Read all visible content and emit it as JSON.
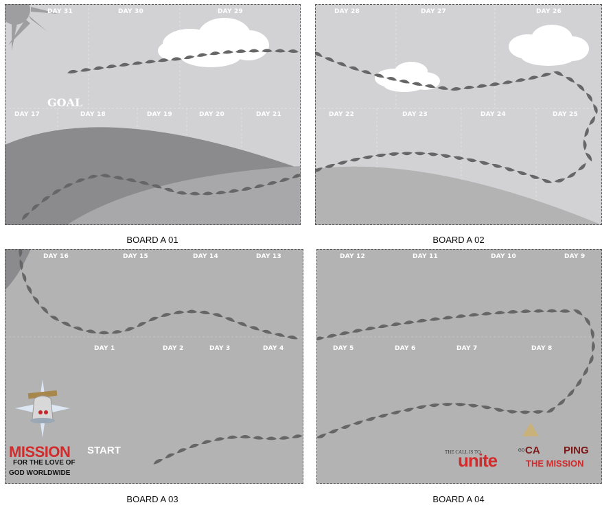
{
  "boards": {
    "a01": {
      "caption": "BOARD A 01",
      "goal": "GOAL",
      "days": {
        "d31": "DAY 31",
        "d30": "DAY 30",
        "d29": "DAY 29",
        "d17": "DAY 17",
        "d18": "DAY 18",
        "d19": "DAY 19",
        "d20": "DAY 20",
        "d21": "DAY 21"
      }
    },
    "a02": {
      "caption": "BOARD A 02",
      "days": {
        "d28": "DAY 28",
        "d27": "DAY 27",
        "d26": "DAY 26",
        "d22": "DAY 22",
        "d23": "DAY 23",
        "d24": "DAY 24",
        "d25": "DAY 25"
      }
    },
    "a03": {
      "caption": "BOARD A 03",
      "days": {
        "d16": "DAY 16",
        "d15": "DAY 15",
        "d14": "DAY 14",
        "d13": "DAY 13",
        "d1": "DAY 1",
        "d2": "DAY 2",
        "d3": "DAY 3",
        "d4": "DAY 4"
      },
      "logo": {
        "mission": "MISSION",
        "start": "START",
        "line1": "FOR THE LOVE OF",
        "line2": "GOD WORLDWIDE"
      }
    },
    "a04": {
      "caption": "BOARD A 04",
      "days": {
        "d12": "DAY 12",
        "d11": "DAY 11",
        "d10": "DAY 10",
        "d9": "DAY 9",
        "d5": "DAY 5",
        "d6": "DAY 6",
        "d7": "DAY 7",
        "d8": "DAY 8"
      },
      "logo": {
        "call": "THE CALL IS TO",
        "unite": "unite",
        "go": "GO",
        "camping_a": "CA",
        "camping_b": "PING",
        "mission": "THE MISSION"
      }
    }
  },
  "colors": {
    "sky": "#d2d1d3",
    "hill_dark": "#8b8a8c",
    "hill_mid": "#a8a7a9",
    "ground": "#b3b3b4",
    "step": "#666666",
    "accent": "#d12b2b"
  }
}
